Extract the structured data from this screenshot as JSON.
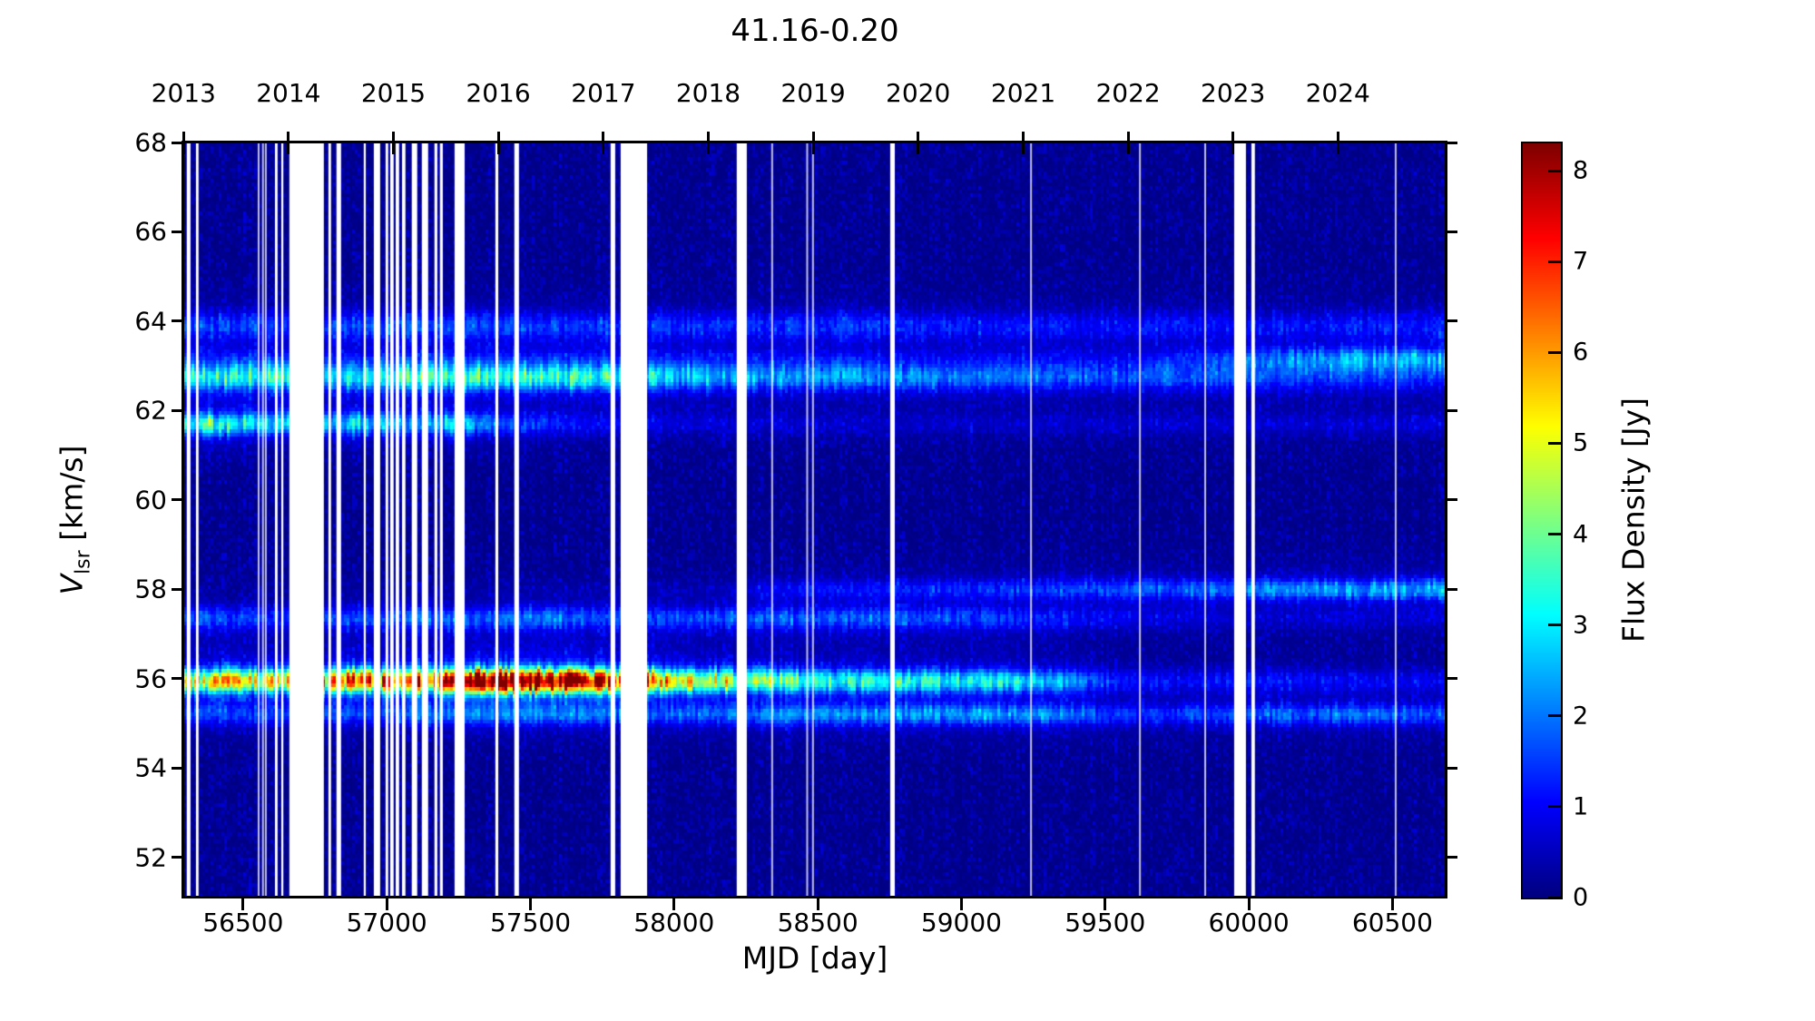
{
  "title": "41.16-0.20",
  "axes": {
    "xlabel": "MJD [day]",
    "ylabel_symbol": "V",
    "ylabel_subscript": "lsr",
    "ylabel_unit": " [km/s]",
    "colorbar_label": "Flux Density [Jy]"
  },
  "chart_data": {
    "type": "heatmap",
    "title": "41.16-0.20",
    "xlabel": "MJD [day]",
    "ylabel": "V_lsr [km/s]",
    "colorbar_label": "Flux Density [Jy]",
    "colormap": "jet",
    "x_range_mjd": [
      56292,
      60685
    ],
    "y_range_kms": [
      51.1,
      68.0
    ],
    "flux_range_jy": [
      0,
      8.3
    ],
    "x_ticks_mjd": [
      56500,
      57000,
      57500,
      58000,
      58500,
      59000,
      59500,
      60000,
      60500
    ],
    "y_ticks_kms": [
      68,
      66,
      64,
      62,
      60,
      58,
      56,
      54,
      52
    ],
    "colorbar_ticks_jy": [
      0,
      1,
      2,
      3,
      4,
      5,
      6,
      7,
      8
    ],
    "top_axis_years": [
      {
        "label": "2013",
        "mjd": 56293
      },
      {
        "label": "2014",
        "mjd": 56658
      },
      {
        "label": "2015",
        "mjd": 57023
      },
      {
        "label": "2016",
        "mjd": 57388
      },
      {
        "label": "2017",
        "mjd": 57754
      },
      {
        "label": "2018",
        "mjd": 58119
      },
      {
        "label": "2019",
        "mjd": 58484
      },
      {
        "label": "2020",
        "mjd": 58849
      },
      {
        "label": "2021",
        "mjd": 59215
      },
      {
        "label": "2022",
        "mjd": 59580
      },
      {
        "label": "2023",
        "mjd": 59945
      },
      {
        "label": "2024",
        "mjd": 60310
      }
    ],
    "background_noise_jy": 0.35,
    "maser_features": [
      {
        "name": "main-56.0-kms",
        "velocity_kms": 55.95,
        "width_kms": 0.18,
        "profile": [
          [
            56292,
            4.0
          ],
          [
            56400,
            4.6
          ],
          [
            56550,
            4.2
          ],
          [
            56700,
            4.4
          ],
          [
            56820,
            5.2
          ],
          [
            56900,
            5.8
          ],
          [
            57000,
            5.4
          ],
          [
            57060,
            6.6
          ],
          [
            57150,
            5.8
          ],
          [
            57250,
            6.9
          ],
          [
            57320,
            7.4
          ],
          [
            57400,
            8.3
          ],
          [
            57500,
            7.8
          ],
          [
            57600,
            7.2
          ],
          [
            57720,
            6.4
          ],
          [
            57810,
            5.9
          ],
          [
            57910,
            5.5
          ],
          [
            58050,
            4.8
          ],
          [
            58200,
            4.0
          ],
          [
            58400,
            3.3
          ],
          [
            58650,
            2.8
          ],
          [
            58900,
            2.6
          ],
          [
            59150,
            2.4
          ],
          [
            59330,
            2.1
          ],
          [
            59420,
            1.5
          ],
          [
            59550,
            0.9
          ],
          [
            59750,
            0.7
          ],
          [
            60000,
            0.85
          ],
          [
            60250,
            0.7
          ],
          [
            60500,
            0.65
          ],
          [
            60685,
            0.6
          ]
        ]
      },
      {
        "name": "55.2-kms",
        "velocity_kms": 55.2,
        "width_kms": 0.16,
        "profile": [
          [
            56292,
            1.1
          ],
          [
            56700,
            0.9
          ],
          [
            57100,
            1.2
          ],
          [
            57500,
            1.4
          ],
          [
            57900,
            1.2
          ],
          [
            58300,
            1.4
          ],
          [
            58700,
            1.7
          ],
          [
            59100,
            1.8
          ],
          [
            59350,
            1.5
          ],
          [
            59600,
            1.0
          ],
          [
            59900,
            1.2
          ],
          [
            60250,
            1.4
          ],
          [
            60685,
            1.4
          ]
        ]
      },
      {
        "name": "57.35-kms",
        "velocity_kms": 57.35,
        "width_kms": 0.18,
        "profile": [
          [
            56292,
            1.2
          ],
          [
            56700,
            1.0
          ],
          [
            57100,
            1.3
          ],
          [
            57500,
            1.5
          ],
          [
            57900,
            1.2
          ],
          [
            58300,
            1.3
          ],
          [
            58700,
            1.3
          ],
          [
            59100,
            1.1
          ],
          [
            59400,
            0.8
          ],
          [
            59700,
            0.45
          ],
          [
            60100,
            0.35
          ],
          [
            60685,
            0.3
          ]
        ]
      },
      {
        "name": "58.0-kms",
        "velocity_kms": 58.0,
        "width_kms": 0.16,
        "profile": [
          [
            56292,
            0.0
          ],
          [
            58150,
            0.15
          ],
          [
            58350,
            0.65
          ],
          [
            58700,
            0.85
          ],
          [
            59000,
            0.95
          ],
          [
            59400,
            1.15
          ],
          [
            59800,
            1.5
          ],
          [
            60050,
            1.75
          ],
          [
            60250,
            1.7
          ],
          [
            60450,
            2.0
          ],
          [
            60685,
            2.0
          ]
        ]
      },
      {
        "name": "61.7-kms",
        "velocity_kms": 61.7,
        "width_kms": 0.17,
        "profile": [
          [
            56292,
            2.1
          ],
          [
            56380,
            3.2
          ],
          [
            56470,
            2.5
          ],
          [
            56650,
            2.2
          ],
          [
            56850,
            2.4
          ],
          [
            57050,
            2.0
          ],
          [
            57250,
            2.1
          ],
          [
            57420,
            1.3
          ],
          [
            57600,
            0.95
          ],
          [
            57800,
            0.6
          ],
          [
            58100,
            0.45
          ],
          [
            58600,
            0.35
          ],
          [
            59200,
            0.35
          ],
          [
            59800,
            0.4
          ],
          [
            60300,
            0.45
          ],
          [
            60685,
            0.45
          ]
        ]
      },
      {
        "name": "62.75-kms",
        "velocity_kms": 62.75,
        "width_kms": 0.2,
        "profile": [
          [
            56292,
            2.5
          ],
          [
            56500,
            2.8
          ],
          [
            56800,
            2.6
          ],
          [
            57100,
            2.9
          ],
          [
            57450,
            3.0
          ],
          [
            57750,
            2.7
          ],
          [
            58050,
            2.1
          ],
          [
            58350,
            1.8
          ],
          [
            58750,
            1.6
          ],
          [
            59150,
            1.45
          ],
          [
            59550,
            1.25
          ],
          [
            59950,
            1.1
          ],
          [
            60150,
            0.95
          ],
          [
            60685,
            0.85
          ]
        ]
      },
      {
        "name": "63.15-kms",
        "velocity_kms": 63.15,
        "width_kms": 0.18,
        "profile": [
          [
            56292,
            0.5
          ],
          [
            58000,
            0.45
          ],
          [
            59000,
            0.4
          ],
          [
            59600,
            0.5
          ],
          [
            59900,
            0.9
          ],
          [
            60100,
            1.4
          ],
          [
            60300,
            1.7
          ],
          [
            60500,
            1.85
          ],
          [
            60685,
            1.8
          ]
        ]
      },
      {
        "name": "63.9-kms",
        "velocity_kms": 63.9,
        "width_kms": 0.22,
        "profile": [
          [
            56292,
            1.15
          ],
          [
            56600,
            0.95
          ],
          [
            57000,
            1.25
          ],
          [
            57400,
            1.15
          ],
          [
            57800,
            1.05
          ],
          [
            58200,
            0.95
          ],
          [
            58600,
            1.05
          ],
          [
            59000,
            0.85
          ],
          [
            59400,
            0.75
          ],
          [
            59800,
            0.85
          ],
          [
            60200,
            0.75
          ],
          [
            60685,
            0.85
          ]
        ]
      }
    ],
    "data_gaps_mjd": [
      [
        56304,
        56317
      ],
      [
        56336,
        56345
      ],
      [
        56611,
        56620
      ],
      [
        56633,
        56640
      ],
      [
        56661,
        56781
      ],
      [
        56797,
        56806
      ],
      [
        56825,
        56841
      ],
      [
        56920,
        56927
      ],
      [
        56955,
        56977
      ],
      [
        56996,
        57005
      ],
      [
        57012,
        57024
      ],
      [
        57031,
        57043
      ],
      [
        57053,
        57065
      ],
      [
        57087,
        57106
      ],
      [
        57122,
        57144
      ],
      [
        57166,
        57176
      ],
      [
        57185,
        57195
      ],
      [
        57236,
        57271
      ],
      [
        57378,
        57388
      ],
      [
        57444,
        57460
      ],
      [
        57779,
        57795
      ],
      [
        57814,
        57906
      ],
      [
        58218,
        58253
      ],
      [
        58752,
        58768
      ],
      [
        59949,
        59990
      ],
      [
        60009,
        60021
      ]
    ],
    "thin_gaps_mjd": [
      56551,
      56566,
      56576,
      58338,
      58460,
      58480,
      59239,
      59618,
      59845,
      60508
    ],
    "colors": {
      "figure_background": "#ffffff",
      "text": "#000000",
      "noise_floor": "#00007f"
    }
  }
}
